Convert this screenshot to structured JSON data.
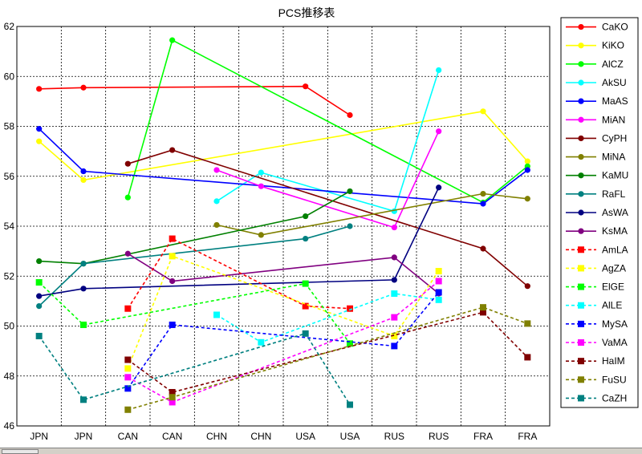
{
  "chart_data": {
    "type": "line",
    "title": "PCS推移表",
    "categories": [
      "JPN",
      "JPN",
      "CAN",
      "CAN",
      "CHN",
      "CHN",
      "USA",
      "USA",
      "RUS",
      "RUS",
      "FRA",
      "FRA"
    ],
    "ylim": [
      46,
      62
    ],
    "yticks": [
      46,
      48,
      50,
      52,
      54,
      56,
      58,
      60,
      62
    ],
    "grid": true,
    "legend_position": "right",
    "series": [
      {
        "name": "CaKO",
        "color": "#ff0000",
        "dash": false,
        "values": [
          59.5,
          59.55,
          null,
          null,
          null,
          null,
          59.6,
          58.45,
          null,
          null,
          null,
          null
        ]
      },
      {
        "name": "KiKO",
        "color": "#ffff00",
        "dash": false,
        "values": [
          57.4,
          55.85,
          null,
          null,
          null,
          null,
          null,
          null,
          null,
          null,
          58.6,
          56.6
        ]
      },
      {
        "name": "AlCZ",
        "color": "#00ff00",
        "dash": false,
        "values": [
          null,
          null,
          55.15,
          61.45,
          null,
          null,
          null,
          null,
          null,
          null,
          54.95,
          56.4
        ]
      },
      {
        "name": "AkSU",
        "color": "#00ffff",
        "dash": false,
        "values": [
          null,
          null,
          null,
          null,
          55.0,
          56.15,
          null,
          null,
          54.6,
          60.25,
          null,
          null
        ]
      },
      {
        "name": "MaAS",
        "color": "#0000ff",
        "dash": false,
        "values": [
          57.9,
          56.2,
          null,
          null,
          null,
          null,
          null,
          null,
          null,
          null,
          54.9,
          56.25
        ]
      },
      {
        "name": "MiAN",
        "color": "#ff00ff",
        "dash": false,
        "values": [
          null,
          null,
          null,
          null,
          56.25,
          55.6,
          null,
          null,
          53.95,
          57.8,
          null,
          null
        ]
      },
      {
        "name": "CyPH",
        "color": "#800000",
        "dash": false,
        "values": [
          null,
          null,
          56.5,
          57.05,
          null,
          null,
          null,
          null,
          null,
          null,
          53.1,
          51.6
        ]
      },
      {
        "name": "MiNA",
        "color": "#808000",
        "dash": false,
        "values": [
          null,
          null,
          null,
          null,
          54.05,
          53.65,
          null,
          null,
          null,
          null,
          55.3,
          55.1
        ]
      },
      {
        "name": "KaMU",
        "color": "#008000",
        "dash": false,
        "values": [
          52.6,
          52.5,
          null,
          null,
          null,
          null,
          54.4,
          55.4,
          null,
          null,
          null,
          null
        ]
      },
      {
        "name": "RaFL",
        "color": "#008080",
        "dash": false,
        "values": [
          50.8,
          52.5,
          null,
          null,
          null,
          null,
          53.5,
          54.0,
          null,
          null,
          null,
          null
        ]
      },
      {
        "name": "AsWA",
        "color": "#000080",
        "dash": false,
        "values": [
          51.2,
          51.5,
          null,
          null,
          null,
          null,
          null,
          null,
          51.85,
          55.55,
          null,
          null
        ]
      },
      {
        "name": "KsMA",
        "color": "#800080",
        "dash": false,
        "values": [
          null,
          null,
          52.9,
          51.8,
          null,
          null,
          null,
          null,
          52.75,
          51.3,
          null,
          null
        ]
      },
      {
        "name": "AmLA",
        "color": "#ff0000",
        "dash": true,
        "values": [
          null,
          null,
          50.7,
          53.5,
          null,
          null,
          50.8,
          50.7,
          null,
          null,
          null,
          null
        ]
      },
      {
        "name": "AgZA",
        "color": "#ffff00",
        "dash": true,
        "values": [
          null,
          null,
          48.3,
          52.8,
          null,
          null,
          null,
          null,
          49.6,
          52.2,
          null,
          null
        ]
      },
      {
        "name": "ElGE",
        "color": "#00ff00",
        "dash": true,
        "values": [
          51.75,
          50.05,
          null,
          null,
          null,
          null,
          51.7,
          49.3,
          null,
          null,
          null,
          null
        ]
      },
      {
        "name": "AlLE",
        "color": "#00ffff",
        "dash": true,
        "values": [
          null,
          null,
          null,
          null,
          50.45,
          49.35,
          null,
          null,
          51.3,
          51.05,
          null,
          null
        ]
      },
      {
        "name": "MySA",
        "color": "#0000ff",
        "dash": true,
        "values": [
          null,
          null,
          47.5,
          50.05,
          null,
          null,
          null,
          null,
          49.2,
          51.35,
          null,
          null
        ]
      },
      {
        "name": "VaMA",
        "color": "#ff00ff",
        "dash": true,
        "values": [
          null,
          null,
          47.95,
          46.95,
          null,
          null,
          null,
          null,
          50.35,
          51.8,
          null,
          null
        ]
      },
      {
        "name": "HaIM",
        "color": "#800000",
        "dash": true,
        "values": [
          null,
          null,
          48.65,
          47.35,
          null,
          null,
          null,
          null,
          null,
          null,
          50.55,
          48.75
        ]
      },
      {
        "name": "FuSU",
        "color": "#808000",
        "dash": true,
        "values": [
          null,
          null,
          46.65,
          47.15,
          null,
          null,
          null,
          null,
          null,
          null,
          50.75,
          50.1
        ]
      },
      {
        "name": "CaZH",
        "color": "#008080",
        "dash": true,
        "values": [
          49.6,
          47.05,
          null,
          null,
          null,
          null,
          49.7,
          46.85,
          null,
          null,
          null,
          null
        ]
      }
    ]
  }
}
